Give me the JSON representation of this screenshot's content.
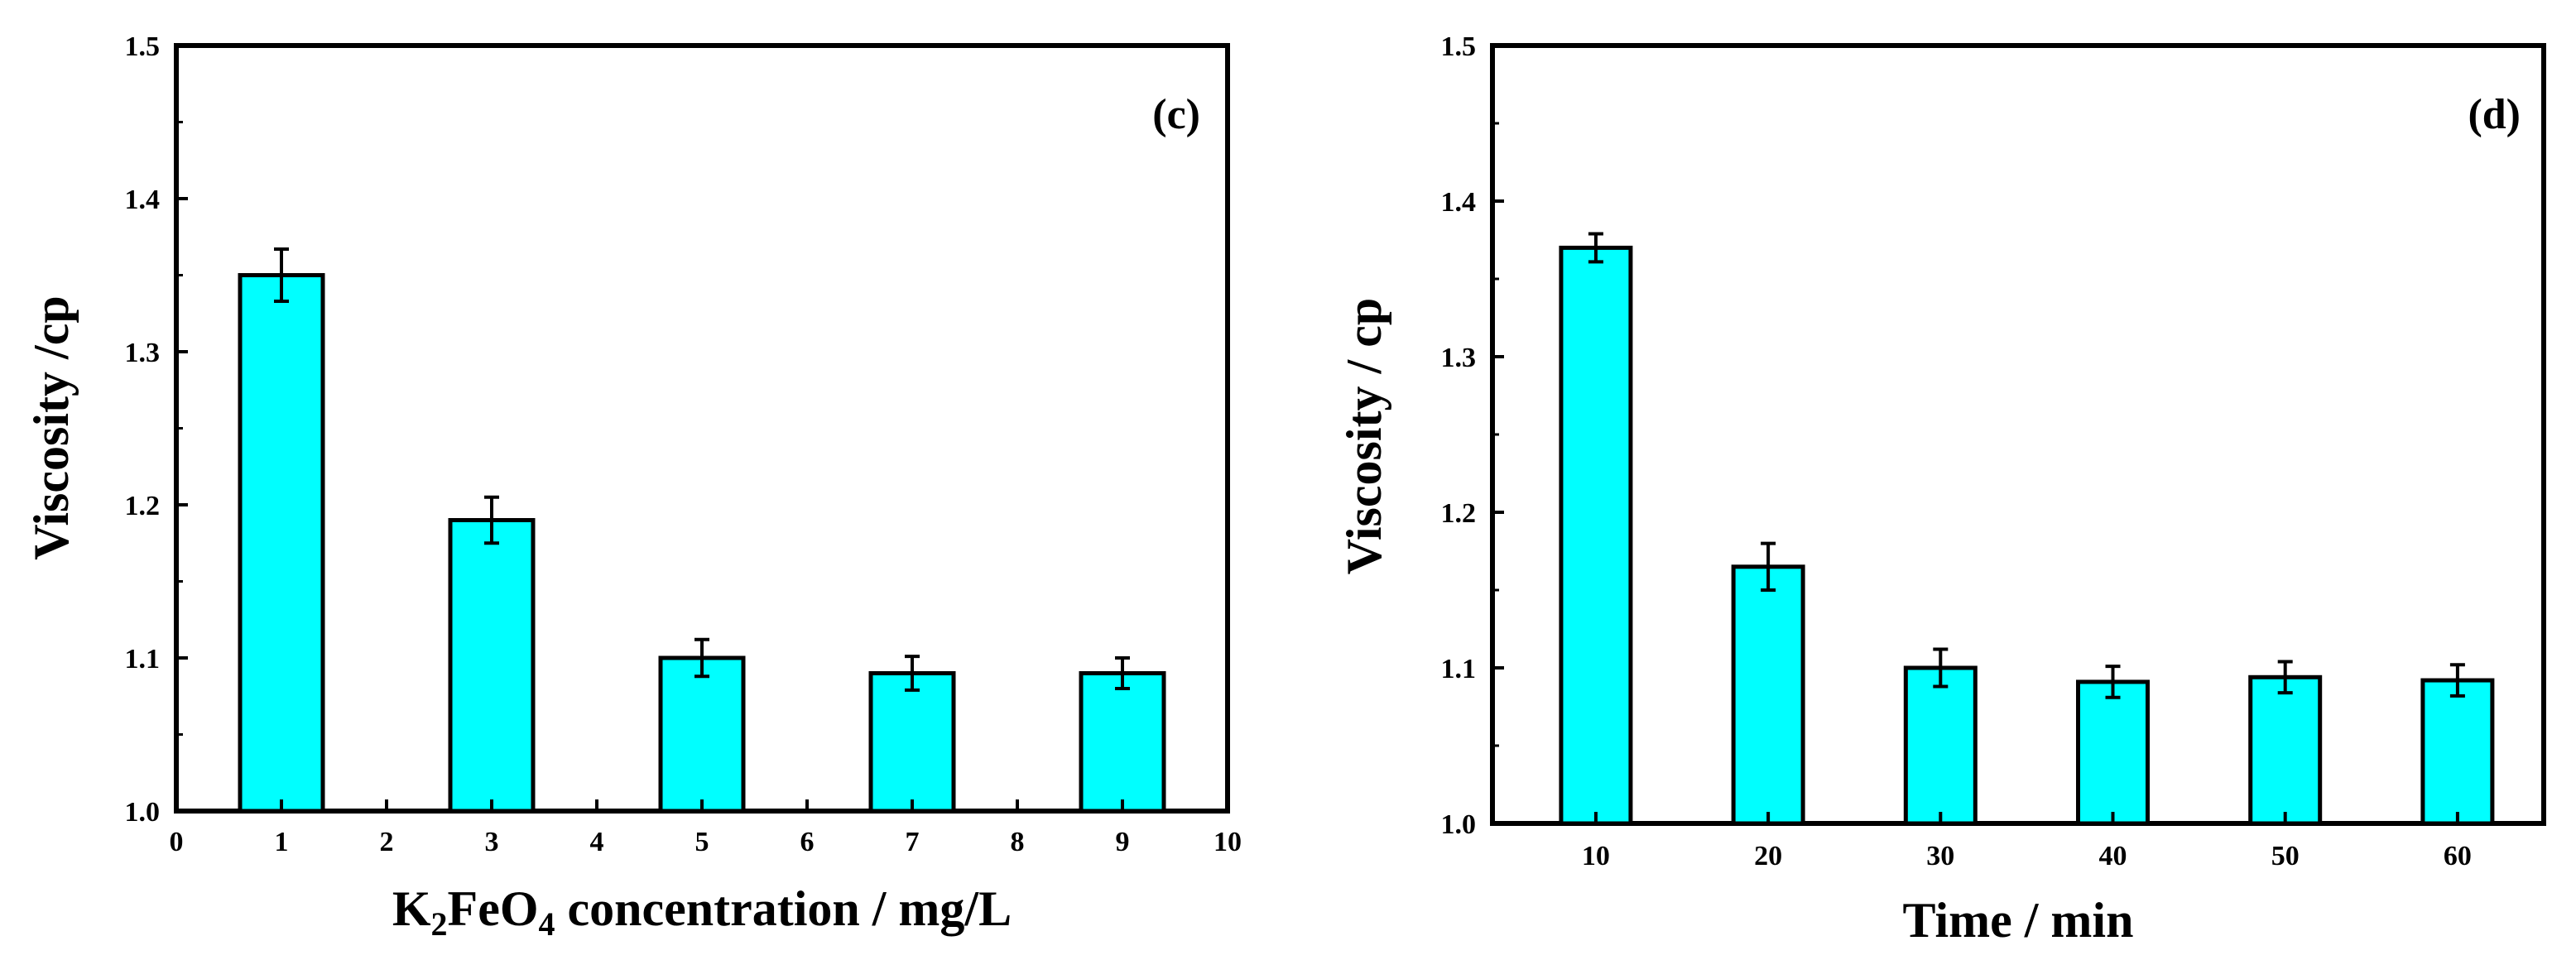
{
  "chart_data": [
    {
      "type": "bar",
      "panel_label": "(c)",
      "xlabel_parts": [
        "K",
        "2",
        "FeO",
        "4",
        " concentration / mg/L"
      ],
      "ylabel": "Viscosity /cp",
      "x_ticks": [
        "0",
        "1",
        "2",
        "3",
        "4",
        "5",
        "6",
        "7",
        "8",
        "9",
        "10"
      ],
      "xlim": [
        0,
        10
      ],
      "ylim": [
        1.0,
        1.5
      ],
      "y_ticks": [
        "1.0",
        "1.1",
        "1.2",
        "1.3",
        "1.4",
        "1.5"
      ],
      "x": [
        1,
        3,
        5,
        7,
        9
      ],
      "values": [
        1.35,
        1.19,
        1.1,
        1.09,
        1.09
      ],
      "errors": [
        0.017,
        0.015,
        0.012,
        0.011,
        0.01
      ],
      "bar_color": "#00FFFF",
      "grid": false
    },
    {
      "type": "bar",
      "panel_label": "(d)",
      "xlabel": "Time / min",
      "ylabel": "Viscosity / cp",
      "categories": [
        "10",
        "20",
        "30",
        "40",
        "50",
        "60"
      ],
      "ylim": [
        1.0,
        1.5
      ],
      "y_ticks": [
        "1.0",
        "1.1",
        "1.2",
        "1.3",
        "1.4",
        "1.5"
      ],
      "values": [
        1.37,
        1.165,
        1.1,
        1.091,
        1.094,
        1.092
      ],
      "errors": [
        0.009,
        0.015,
        0.012,
        0.01,
        0.01,
        0.01
      ],
      "bar_color": "#00FFFF",
      "grid": false
    }
  ]
}
